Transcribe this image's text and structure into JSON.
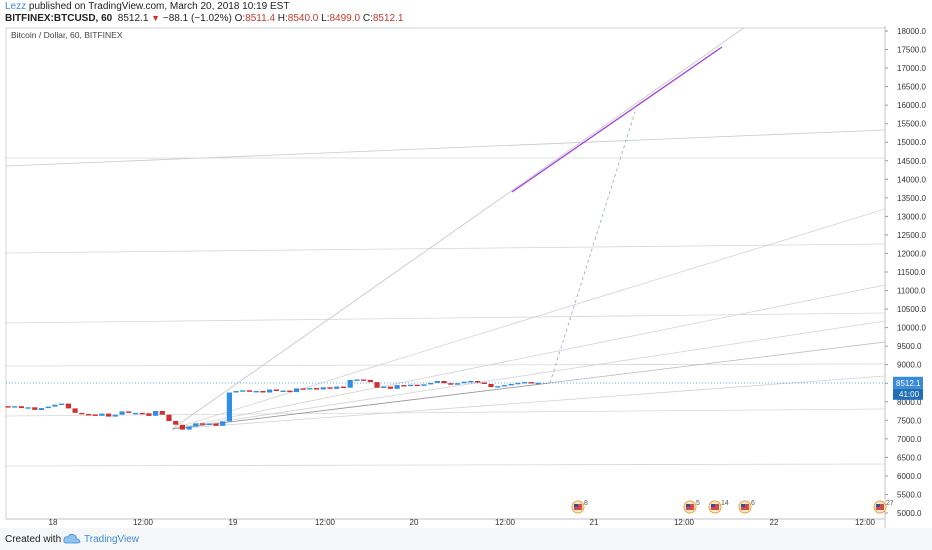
{
  "header": {
    "user": "Lezz",
    "published": " published on TradingView.com, March 20, 2018 10:19 EST",
    "symbol": "BITFINEX:BTCUSD, 60",
    "last": "8512.1",
    "down_arrow": "▼",
    "change": "−88.1 (−1.02%)",
    "o_label": "O:",
    "o": "8511.4",
    "h_label": "H:",
    "h": "8540.0",
    "l_label": "L:",
    "l": "8499.0",
    "c_label": "C:",
    "c": "8512.1"
  },
  "footer": {
    "created": "Created with",
    "brand": "TradingView"
  },
  "colors": {
    "up": "#2f8fe6",
    "down": "#d12f2f",
    "trend": "#c8c8c8",
    "target": "#a23de0",
    "price_line": "#3b8bd9"
  },
  "chart_data": {
    "type": "candlestick",
    "title": "Bitcoin / Dollar, 60, BITFINEX",
    "ylim": [
      4900,
      18100
    ],
    "y_ticks": [
      "5000.0",
      "5500.0",
      "6000.0",
      "6500.0",
      "7000.0",
      "7500.0",
      "8000.0",
      "8500.0",
      "9000.0",
      "9500.0",
      "10000.0",
      "10500.0",
      "11000.0",
      "11500.0",
      "12000.0",
      "12500.0",
      "13000.0",
      "13500.0",
      "14000.0",
      "14500.0",
      "15000.0",
      "15500.0",
      "16000.0",
      "16500.0",
      "17000.0",
      "17500.0",
      "18000.0"
    ],
    "x_ticks": [
      "18",
      "12:00",
      "19",
      "12:00",
      "20",
      "12:00",
      "21",
      "12:00",
      "22",
      "12:00"
    ],
    "current_price": "8512.1",
    "countdown": "41:00",
    "event_counts": [
      "8",
      "5",
      "14",
      "6",
      "27"
    ],
    "candles": [
      {
        "o": 7880,
        "c": 7850
      },
      {
        "o": 7850,
        "c": 7880
      },
      {
        "o": 7880,
        "c": 7830
      },
      {
        "o": 7830,
        "c": 7850
      },
      {
        "o": 7850,
        "c": 7780
      },
      {
        "o": 7780,
        "c": 7830
      },
      {
        "o": 7830,
        "c": 7870
      },
      {
        "o": 7870,
        "c": 7920
      },
      {
        "o": 7920,
        "c": 7950
      },
      {
        "o": 7950,
        "c": 7820
      },
      {
        "o": 7820,
        "c": 7700
      },
      {
        "o": 7700,
        "c": 7670
      },
      {
        "o": 7670,
        "c": 7660
      },
      {
        "o": 7660,
        "c": 7620
      },
      {
        "o": 7620,
        "c": 7680
      },
      {
        "o": 7680,
        "c": 7600
      },
      {
        "o": 7600,
        "c": 7650
      },
      {
        "o": 7650,
        "c": 7740
      },
      {
        "o": 7740,
        "c": 7700
      },
      {
        "o": 7700,
        "c": 7700
      },
      {
        "o": 7700,
        "c": 7690
      },
      {
        "o": 7690,
        "c": 7620
      },
      {
        "o": 7620,
        "c": 7750
      },
      {
        "o": 7750,
        "c": 7650
      },
      {
        "o": 7650,
        "c": 7480
      },
      {
        "o": 7480,
        "c": 7380
      },
      {
        "o": 7380,
        "c": 7250
      },
      {
        "o": 7250,
        "c": 7330
      },
      {
        "o": 7330,
        "c": 7420
      },
      {
        "o": 7420,
        "c": 7380
      },
      {
        "o": 7380,
        "c": 7410
      },
      {
        "o": 7410,
        "c": 7350
      },
      {
        "o": 7350,
        "c": 7470
      },
      {
        "o": 7470,
        "c": 8250
      },
      {
        "o": 8250,
        "c": 8290
      },
      {
        "o": 8290,
        "c": 8310
      },
      {
        "o": 8310,
        "c": 8270
      },
      {
        "o": 8270,
        "c": 8290
      },
      {
        "o": 8290,
        "c": 8250
      },
      {
        "o": 8250,
        "c": 8330
      },
      {
        "o": 8330,
        "c": 8290
      },
      {
        "o": 8290,
        "c": 8300
      },
      {
        "o": 8300,
        "c": 8260
      },
      {
        "o": 8260,
        "c": 8360
      },
      {
        "o": 8360,
        "c": 8340
      },
      {
        "o": 8340,
        "c": 8370
      },
      {
        "o": 8370,
        "c": 8330
      },
      {
        "o": 8330,
        "c": 8390
      },
      {
        "o": 8390,
        "c": 8350
      },
      {
        "o": 8350,
        "c": 8410
      },
      {
        "o": 8410,
        "c": 8380
      },
      {
        "o": 8380,
        "c": 8590
      },
      {
        "o": 8590,
        "c": 8600
      },
      {
        "o": 8600,
        "c": 8590
      },
      {
        "o": 8590,
        "c": 8530
      },
      {
        "o": 8530,
        "c": 8380
      },
      {
        "o": 8380,
        "c": 8410
      },
      {
        "o": 8410,
        "c": 8350
      },
      {
        "o": 8350,
        "c": 8450
      },
      {
        "o": 8450,
        "c": 8440
      },
      {
        "o": 8440,
        "c": 8460
      },
      {
        "o": 8460,
        "c": 8430
      },
      {
        "o": 8430,
        "c": 8470
      },
      {
        "o": 8470,
        "c": 8510
      },
      {
        "o": 8510,
        "c": 8560
      },
      {
        "o": 8560,
        "c": 8500
      },
      {
        "o": 8500,
        "c": 8460
      },
      {
        "o": 8460,
        "c": 8500
      },
      {
        "o": 8500,
        "c": 8540
      },
      {
        "o": 8540,
        "c": 8560
      },
      {
        "o": 8560,
        "c": 8520
      },
      {
        "o": 8520,
        "c": 8480
      },
      {
        "o": 8480,
        "c": 8400
      },
      {
        "o": 8400,
        "c": 8420
      },
      {
        "o": 8420,
        "c": 8450
      },
      {
        "o": 8450,
        "c": 8480
      },
      {
        "o": 8480,
        "c": 8510
      },
      {
        "o": 8510,
        "c": 8530
      },
      {
        "o": 8530,
        "c": 8500
      },
      {
        "o": 8500,
        "c": 8512
      }
    ]
  }
}
